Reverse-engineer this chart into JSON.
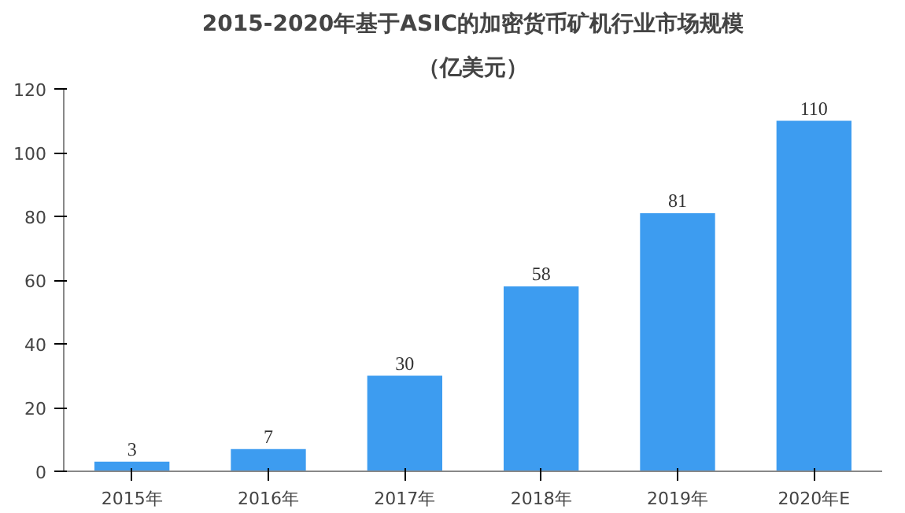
{
  "chart_data": {
    "type": "bar",
    "title": "2015-2020年基于ASIC的加密货币矿机行业市场规模",
    "subtitle": "（亿美元）",
    "categories": [
      "2015年",
      "2016年",
      "2017年",
      "2018年",
      "2019年",
      "2020年E"
    ],
    "values": [
      3,
      7,
      30,
      58,
      81,
      110
    ],
    "color": "#3d9cf0",
    "ylim": [
      0,
      120
    ],
    "yticks": [
      0,
      20,
      40,
      60,
      80,
      100,
      120
    ],
    "data_labels": true,
    "grid": false
  }
}
